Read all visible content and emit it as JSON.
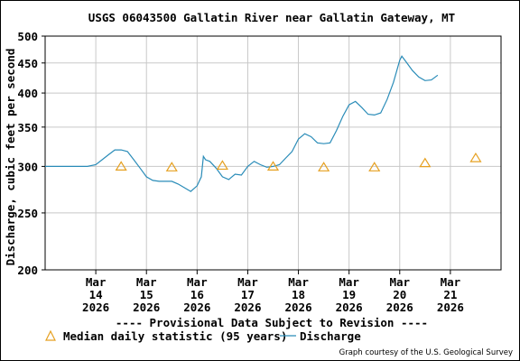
{
  "chart_data": {
    "type": "line",
    "title": "USGS 06043500 Gallatin River near Gallatin Gateway, MT",
    "ylabel": "Discharge, cubic feet per second",
    "yscale": "log",
    "ylim": [
      200,
      500
    ],
    "y_ticks": [
      {
        "value": 200,
        "label": "200"
      },
      {
        "value": 250,
        "label": "250"
      },
      {
        "value": 300,
        "label": "300"
      },
      {
        "value": 350,
        "label": "350"
      },
      {
        "value": 400,
        "label": "400"
      },
      {
        "value": 450,
        "label": "450"
      },
      {
        "value": 500,
        "label": "500"
      }
    ],
    "xlim": [
      "2026-03-13",
      "2026-03-22"
    ],
    "x_ticks": [
      {
        "date": "2026-03-14",
        "label_month": "Mar",
        "label_day": "14",
        "label_year": "2026"
      },
      {
        "date": "2026-03-15",
        "label_month": "Mar",
        "label_day": "15",
        "label_year": "2026"
      },
      {
        "date": "2026-03-16",
        "label_month": "Mar",
        "label_day": "16",
        "label_year": "2026"
      },
      {
        "date": "2026-03-17",
        "label_month": "Mar",
        "label_day": "17",
        "label_year": "2026"
      },
      {
        "date": "2026-03-18",
        "label_month": "Mar",
        "label_day": "18",
        "label_year": "2026"
      },
      {
        "date": "2026-03-19",
        "label_month": "Mar",
        "label_day": "19",
        "label_year": "2026"
      },
      {
        "date": "2026-03-20",
        "label_month": "Mar",
        "label_day": "20",
        "label_year": "2026"
      },
      {
        "date": "2026-03-21",
        "label_month": "Mar",
        "label_day": "21",
        "label_year": "2026"
      }
    ],
    "grid": true,
    "series": [
      {
        "name": "Discharge",
        "color": "#2a8cb8",
        "points": [
          [
            "2026-03-13 00:00",
            300
          ],
          [
            "2026-03-13 12:00",
            300
          ],
          [
            "2026-03-13 20:00",
            300
          ],
          [
            "2026-03-14 00:00",
            302
          ],
          [
            "2026-03-14 03:00",
            308
          ],
          [
            "2026-03-14 06:00",
            314
          ],
          [
            "2026-03-14 09:00",
            320
          ],
          [
            "2026-03-14 12:00",
            320
          ],
          [
            "2026-03-14 15:00",
            318
          ],
          [
            "2026-03-14 18:00",
            308
          ],
          [
            "2026-03-14 21:00",
            298
          ],
          [
            "2026-03-15 00:00",
            288
          ],
          [
            "2026-03-15 03:00",
            284
          ],
          [
            "2026-03-15 06:00",
            283
          ],
          [
            "2026-03-15 09:00",
            283
          ],
          [
            "2026-03-15 12:00",
            283
          ],
          [
            "2026-03-15 15:00",
            280
          ],
          [
            "2026-03-15 18:00",
            276
          ],
          [
            "2026-03-15 21:00",
            272
          ],
          [
            "2026-03-16 00:00",
            278
          ],
          [
            "2026-03-16 02:00",
            288
          ],
          [
            "2026-03-16 03:00",
            312
          ],
          [
            "2026-03-16 04:00",
            308
          ],
          [
            "2026-03-16 06:00",
            306
          ],
          [
            "2026-03-16 09:00",
            298
          ],
          [
            "2026-03-16 12:00",
            288
          ],
          [
            "2026-03-16 15:00",
            285
          ],
          [
            "2026-03-16 18:00",
            291
          ],
          [
            "2026-03-16 21:00",
            290
          ],
          [
            "2026-03-17 00:00",
            300
          ],
          [
            "2026-03-17 03:00",
            306
          ],
          [
            "2026-03-17 06:00",
            302
          ],
          [
            "2026-03-17 09:00",
            299
          ],
          [
            "2026-03-17 12:00",
            300
          ],
          [
            "2026-03-17 15:00",
            302
          ],
          [
            "2026-03-17 18:00",
            310
          ],
          [
            "2026-03-17 21:00",
            318
          ],
          [
            "2026-03-18 00:00",
            334
          ],
          [
            "2026-03-18 03:00",
            341
          ],
          [
            "2026-03-18 06:00",
            337
          ],
          [
            "2026-03-18 09:00",
            329
          ],
          [
            "2026-03-18 12:00",
            328
          ],
          [
            "2026-03-18 15:00",
            329
          ],
          [
            "2026-03-18 18:00",
            345
          ],
          [
            "2026-03-18 21:00",
            365
          ],
          [
            "2026-03-19 00:00",
            382
          ],
          [
            "2026-03-19 03:00",
            387
          ],
          [
            "2026-03-19 06:00",
            378
          ],
          [
            "2026-03-19 09:00",
            368
          ],
          [
            "2026-03-19 12:00",
            367
          ],
          [
            "2026-03-19 15:00",
            370
          ],
          [
            "2026-03-19 18:00",
            390
          ],
          [
            "2026-03-19 21:00",
            417
          ],
          [
            "2026-03-20 00:00",
            455
          ],
          [
            "2026-03-20 01:00",
            462
          ],
          [
            "2026-03-20 03:00",
            452
          ],
          [
            "2026-03-20 06:00",
            437
          ],
          [
            "2026-03-20 09:00",
            426
          ],
          [
            "2026-03-20 12:00",
            420
          ],
          [
            "2026-03-20 15:00",
            421
          ],
          [
            "2026-03-20 18:00",
            429
          ]
        ]
      },
      {
        "name": "Median daily statistic (95 years)",
        "color": "#e6a020",
        "marker": "triangle",
        "points": [
          [
            "2026-03-14 12:00",
            300
          ],
          [
            "2026-03-15 12:00",
            299
          ],
          [
            "2026-03-16 12:00",
            301
          ],
          [
            "2026-03-17 12:00",
            300
          ],
          [
            "2026-03-18 12:00",
            299
          ],
          [
            "2026-03-19 12:00",
            299
          ],
          [
            "2026-03-20 12:00",
            304
          ],
          [
            "2026-03-21 12:00",
            310
          ]
        ]
      }
    ],
    "notice": "---- Provisional Data Subject to Revision ----",
    "notice_color": "#dd0000",
    "legend": [
      {
        "label": "Median daily statistic (95 years)",
        "marker": "triangle",
        "color": "#e6a020"
      },
      {
        "label": "Discharge",
        "marker": "line",
        "color": "#2a8cb8"
      }
    ],
    "legend_position": "bottom",
    "credit": "Graph courtesy of the U.S. Geological Survey"
  }
}
